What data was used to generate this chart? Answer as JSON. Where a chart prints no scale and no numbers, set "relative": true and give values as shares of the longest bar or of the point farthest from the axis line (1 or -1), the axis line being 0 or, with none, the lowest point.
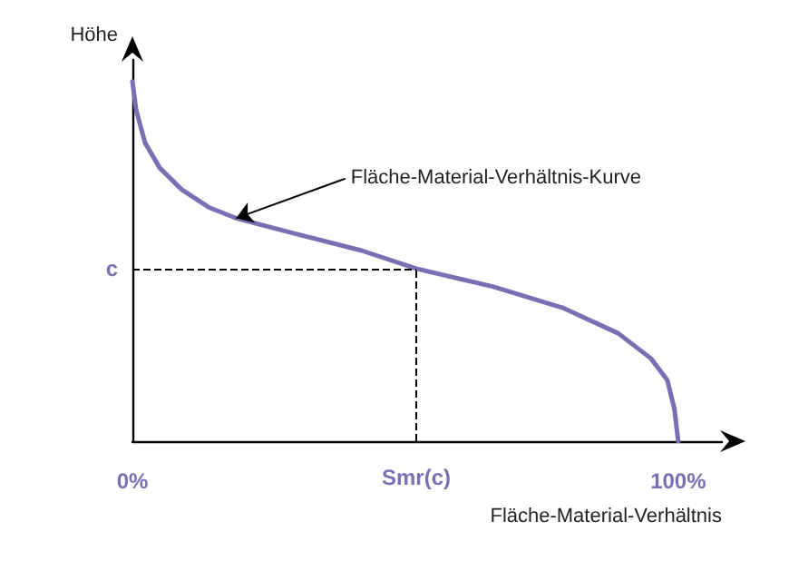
{
  "chart_data": {
    "type": "line",
    "relative": true,
    "xlabel": "Fläche-Material-Verhältnis",
    "ylabel": "Höhe",
    "x": [
      0,
      0.7,
      2.3,
      5,
      9,
      14,
      19,
      29,
      42,
      52,
      66,
      79,
      89,
      95,
      98,
      99.3,
      100
    ],
    "series": [
      {
        "color": "#7b6fb3",
        "values": [
          1,
          0.92,
          0.83,
          0.76,
          0.7,
          0.65,
          0.62,
          0.58,
          0.53,
          0.48,
          0.43,
          0.37,
          0.3,
          0.23,
          0.17,
          0.09,
          0
        ]
      }
    ],
    "xlim": [
      0,
      108
    ],
    "xticks": [
      {
        "value": 0,
        "label": "0%"
      },
      {
        "value": 100,
        "label": "100%"
      }
    ],
    "ref_lines": [
      {
        "axis": "y",
        "value": 0.48,
        "label": "c",
        "line_style": "dashed"
      },
      {
        "axis": "x",
        "value": 52,
        "label": "Smr(c)",
        "line_style": "dashed"
      }
    ],
    "annotations": [
      {
        "text": "Fläche-Material-Verhältnis-Kurve",
        "x": 19,
        "y": 0.62
      }
    ],
    "grid": false,
    "marker": "none",
    "line_style": "solid"
  }
}
